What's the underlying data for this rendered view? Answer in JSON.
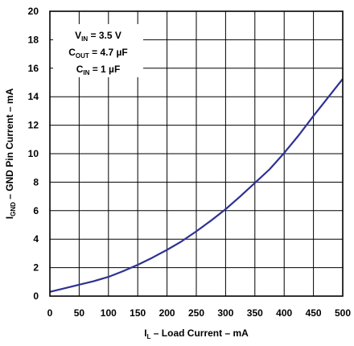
{
  "chart_data": {
    "type": "line",
    "xlabel": {
      "main": "I",
      "sub": "L",
      "rest": " – Load Current – mA"
    },
    "ylabel": {
      "main": "I",
      "sub": "GND",
      "rest": " – GND Pin Current – mA"
    },
    "xlim": [
      0,
      500
    ],
    "ylim": [
      0,
      20
    ],
    "xticks": [
      "0",
      "50",
      "100",
      "150",
      "200",
      "250",
      "300",
      "350",
      "400",
      "450",
      "500"
    ],
    "yticks": [
      "0",
      "2",
      "4",
      "6",
      "8",
      "10",
      "12",
      "14",
      "16",
      "18",
      "20"
    ],
    "grid": true,
    "annotation": {
      "lines": [
        {
          "main": "V",
          "sub": "IN",
          "rest": " =  3.5 V"
        },
        {
          "main": "C",
          "sub": "OUT",
          "rest": " = 4.7 µF"
        },
        {
          "main": "C",
          "sub": "IN",
          "rest": " = 1 µF"
        }
      ]
    },
    "series": [
      {
        "color": "#2e3192",
        "x": [
          0,
          25,
          50,
          75,
          100,
          125,
          150,
          175,
          200,
          225,
          250,
          275,
          300,
          325,
          350,
          375,
          400,
          425,
          450,
          475,
          500
        ],
        "y": [
          0.3,
          0.55,
          0.8,
          1.05,
          1.35,
          1.75,
          2.2,
          2.7,
          3.25,
          3.85,
          4.55,
          5.3,
          6.1,
          7.0,
          7.95,
          8.9,
          10.05,
          11.3,
          12.65,
          13.95,
          15.25
        ]
      }
    ]
  }
}
